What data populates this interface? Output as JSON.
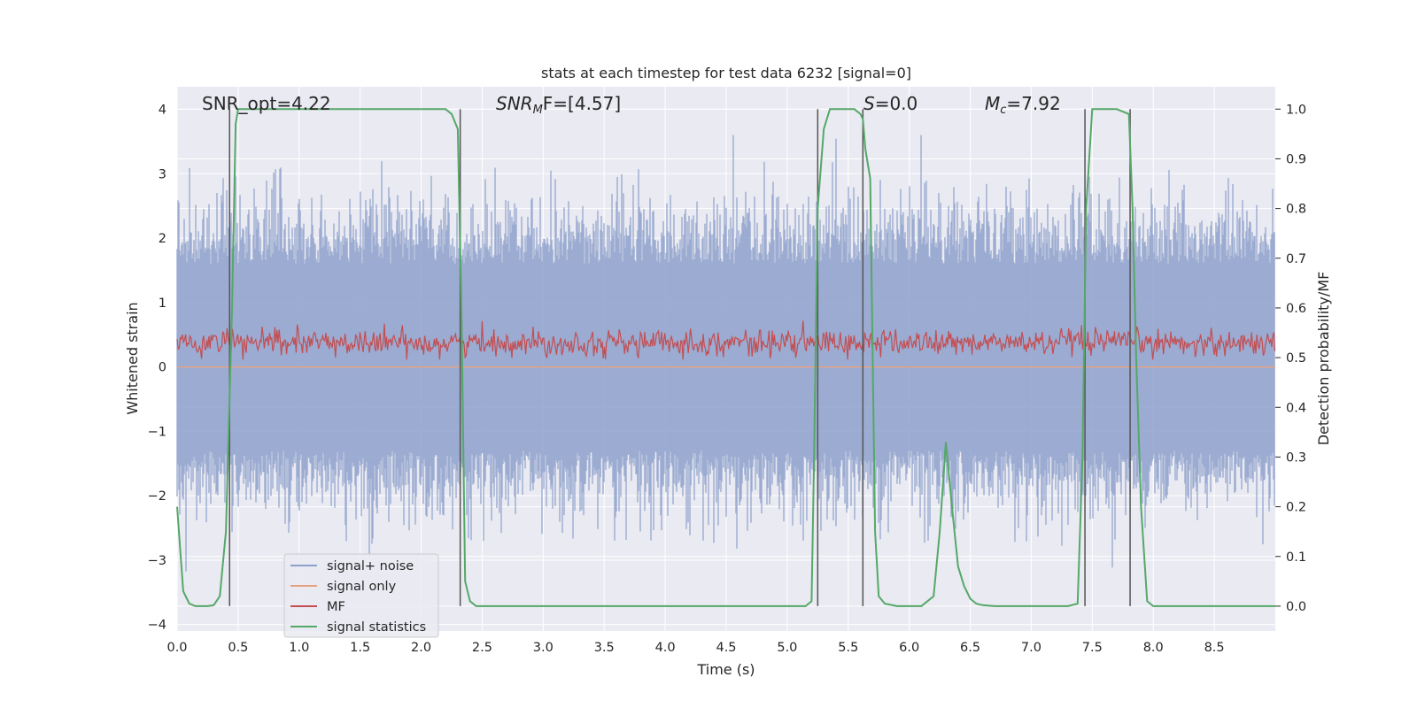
{
  "chart_data": {
    "type": "line",
    "title": "stats at each timestep for test data 6232 [signal=0]",
    "xlabel": "Time (s)",
    "ylabel": "Whitened strain",
    "y2label": "Detection probability/MF",
    "xlim": [
      0.0,
      9.0
    ],
    "ylim": [
      -4.1,
      4.35
    ],
    "y2lim": [
      -0.05,
      1.045
    ],
    "xticks": [
      "0.0",
      "0.5",
      "1.0",
      "1.5",
      "2.0",
      "2.5",
      "3.0",
      "3.5",
      "4.0",
      "4.5",
      "5.0",
      "5.5",
      "6.0",
      "6.5",
      "7.0",
      "7.5",
      "8.0",
      "8.5"
    ],
    "yticks": [
      "4",
      "3",
      "2",
      "1",
      "0",
      "−1",
      "−2",
      "−3",
      "−4"
    ],
    "y2ticks": [
      "1.0",
      "0.9",
      "0.8",
      "0.7",
      "0.6",
      "0.5",
      "0.4",
      "0.3",
      "0.2",
      "0.1",
      "0.0"
    ],
    "annotations": {
      "snr_opt": "SNR_opt=4.22",
      "snr_mf_sym": "SNR",
      "snr_mf_sub": "M",
      "snr_mf_rest": "F=[4.57]",
      "s_sym": "S",
      "s_rest": "=0.0",
      "mc_sym": "M",
      "mc_sub": "c",
      "mc_rest": "=7.92"
    },
    "legend": {
      "position": "lower-left",
      "entries": [
        {
          "label": "signal+ noise",
          "color": "#8da0cb"
        },
        {
          "label": "signal only",
          "color": "#e8a282"
        },
        {
          "label": "MF",
          "color": "#c44e52"
        },
        {
          "label": "signal statistics",
          "color": "#55a868"
        }
      ]
    },
    "vlines": [
      0.43,
      2.32,
      5.25,
      5.62,
      7.44,
      7.81
    ],
    "vline_range_y2": [
      0.0,
      1.0
    ],
    "series": [
      {
        "name": "signal statistics",
        "axis": "y2",
        "color": "#55a868",
        "x": [
          0.0,
          0.05,
          0.1,
          0.15,
          0.2,
          0.25,
          0.3,
          0.35,
          0.4,
          0.45,
          0.48,
          0.5,
          0.55,
          0.6,
          0.7,
          0.8,
          0.9,
          1.0,
          1.2,
          1.4,
          1.6,
          1.8,
          2.0,
          2.1,
          2.2,
          2.25,
          2.3,
          2.33,
          2.36,
          2.4,
          2.45,
          2.5,
          3.0,
          4.0,
          5.0,
          5.15,
          5.2,
          5.22,
          5.25,
          5.3,
          5.35,
          5.4,
          5.5,
          5.55,
          5.6,
          5.62,
          5.64,
          5.68,
          5.72,
          5.75,
          5.8,
          5.9,
          6.0,
          6.1,
          6.2,
          6.25,
          6.3,
          6.35,
          6.4,
          6.45,
          6.5,
          6.55,
          6.6,
          6.7,
          6.8,
          7.0,
          7.2,
          7.3,
          7.38,
          7.42,
          7.45,
          7.5,
          7.55,
          7.6,
          7.7,
          7.75,
          7.8,
          7.83,
          7.86,
          7.9,
          7.95,
          8.0,
          8.5,
          9.0
        ],
        "y": [
          0.2,
          0.03,
          0.005,
          0.0,
          0.0,
          0.0,
          0.002,
          0.02,
          0.15,
          0.6,
          0.97,
          1.0,
          1.0,
          1.0,
          1.0,
          1.0,
          1.0,
          1.0,
          1.0,
          1.0,
          1.0,
          1.0,
          1.0,
          1.0,
          1.0,
          0.99,
          0.96,
          0.6,
          0.05,
          0.01,
          0.0,
          0.0,
          0.0,
          0.0,
          0.0,
          0.0,
          0.01,
          0.3,
          0.8,
          0.96,
          1.0,
          1.0,
          1.0,
          1.0,
          0.99,
          0.98,
          0.92,
          0.86,
          0.15,
          0.02,
          0.005,
          0.0,
          0.0,
          0.0,
          0.02,
          0.15,
          0.33,
          0.2,
          0.08,
          0.04,
          0.015,
          0.005,
          0.002,
          0.0,
          0.0,
          0.0,
          0.0,
          0.0,
          0.005,
          0.3,
          0.8,
          1.0,
          1.0,
          1.0,
          1.0,
          0.995,
          0.99,
          0.8,
          0.5,
          0.2,
          0.01,
          0.0,
          0.0,
          0.0
        ]
      },
      {
        "name": "signal only",
        "axis": "y",
        "color": "#e8a282",
        "x": [
          0.0,
          9.0
        ],
        "y": [
          0.0,
          0.0
        ]
      }
    ],
    "noise_band": {
      "name": "signal+ noise",
      "color": "#8da0cb",
      "typical_range": [
        -1.3,
        1.6
      ],
      "extreme_range": [
        -3.6,
        3.6
      ]
    },
    "mf_band": {
      "name": "MF",
      "color": "#c44e52",
      "typical_range_y2": [
        0.5,
        0.56
      ],
      "peak_y2": 0.6
    }
  }
}
